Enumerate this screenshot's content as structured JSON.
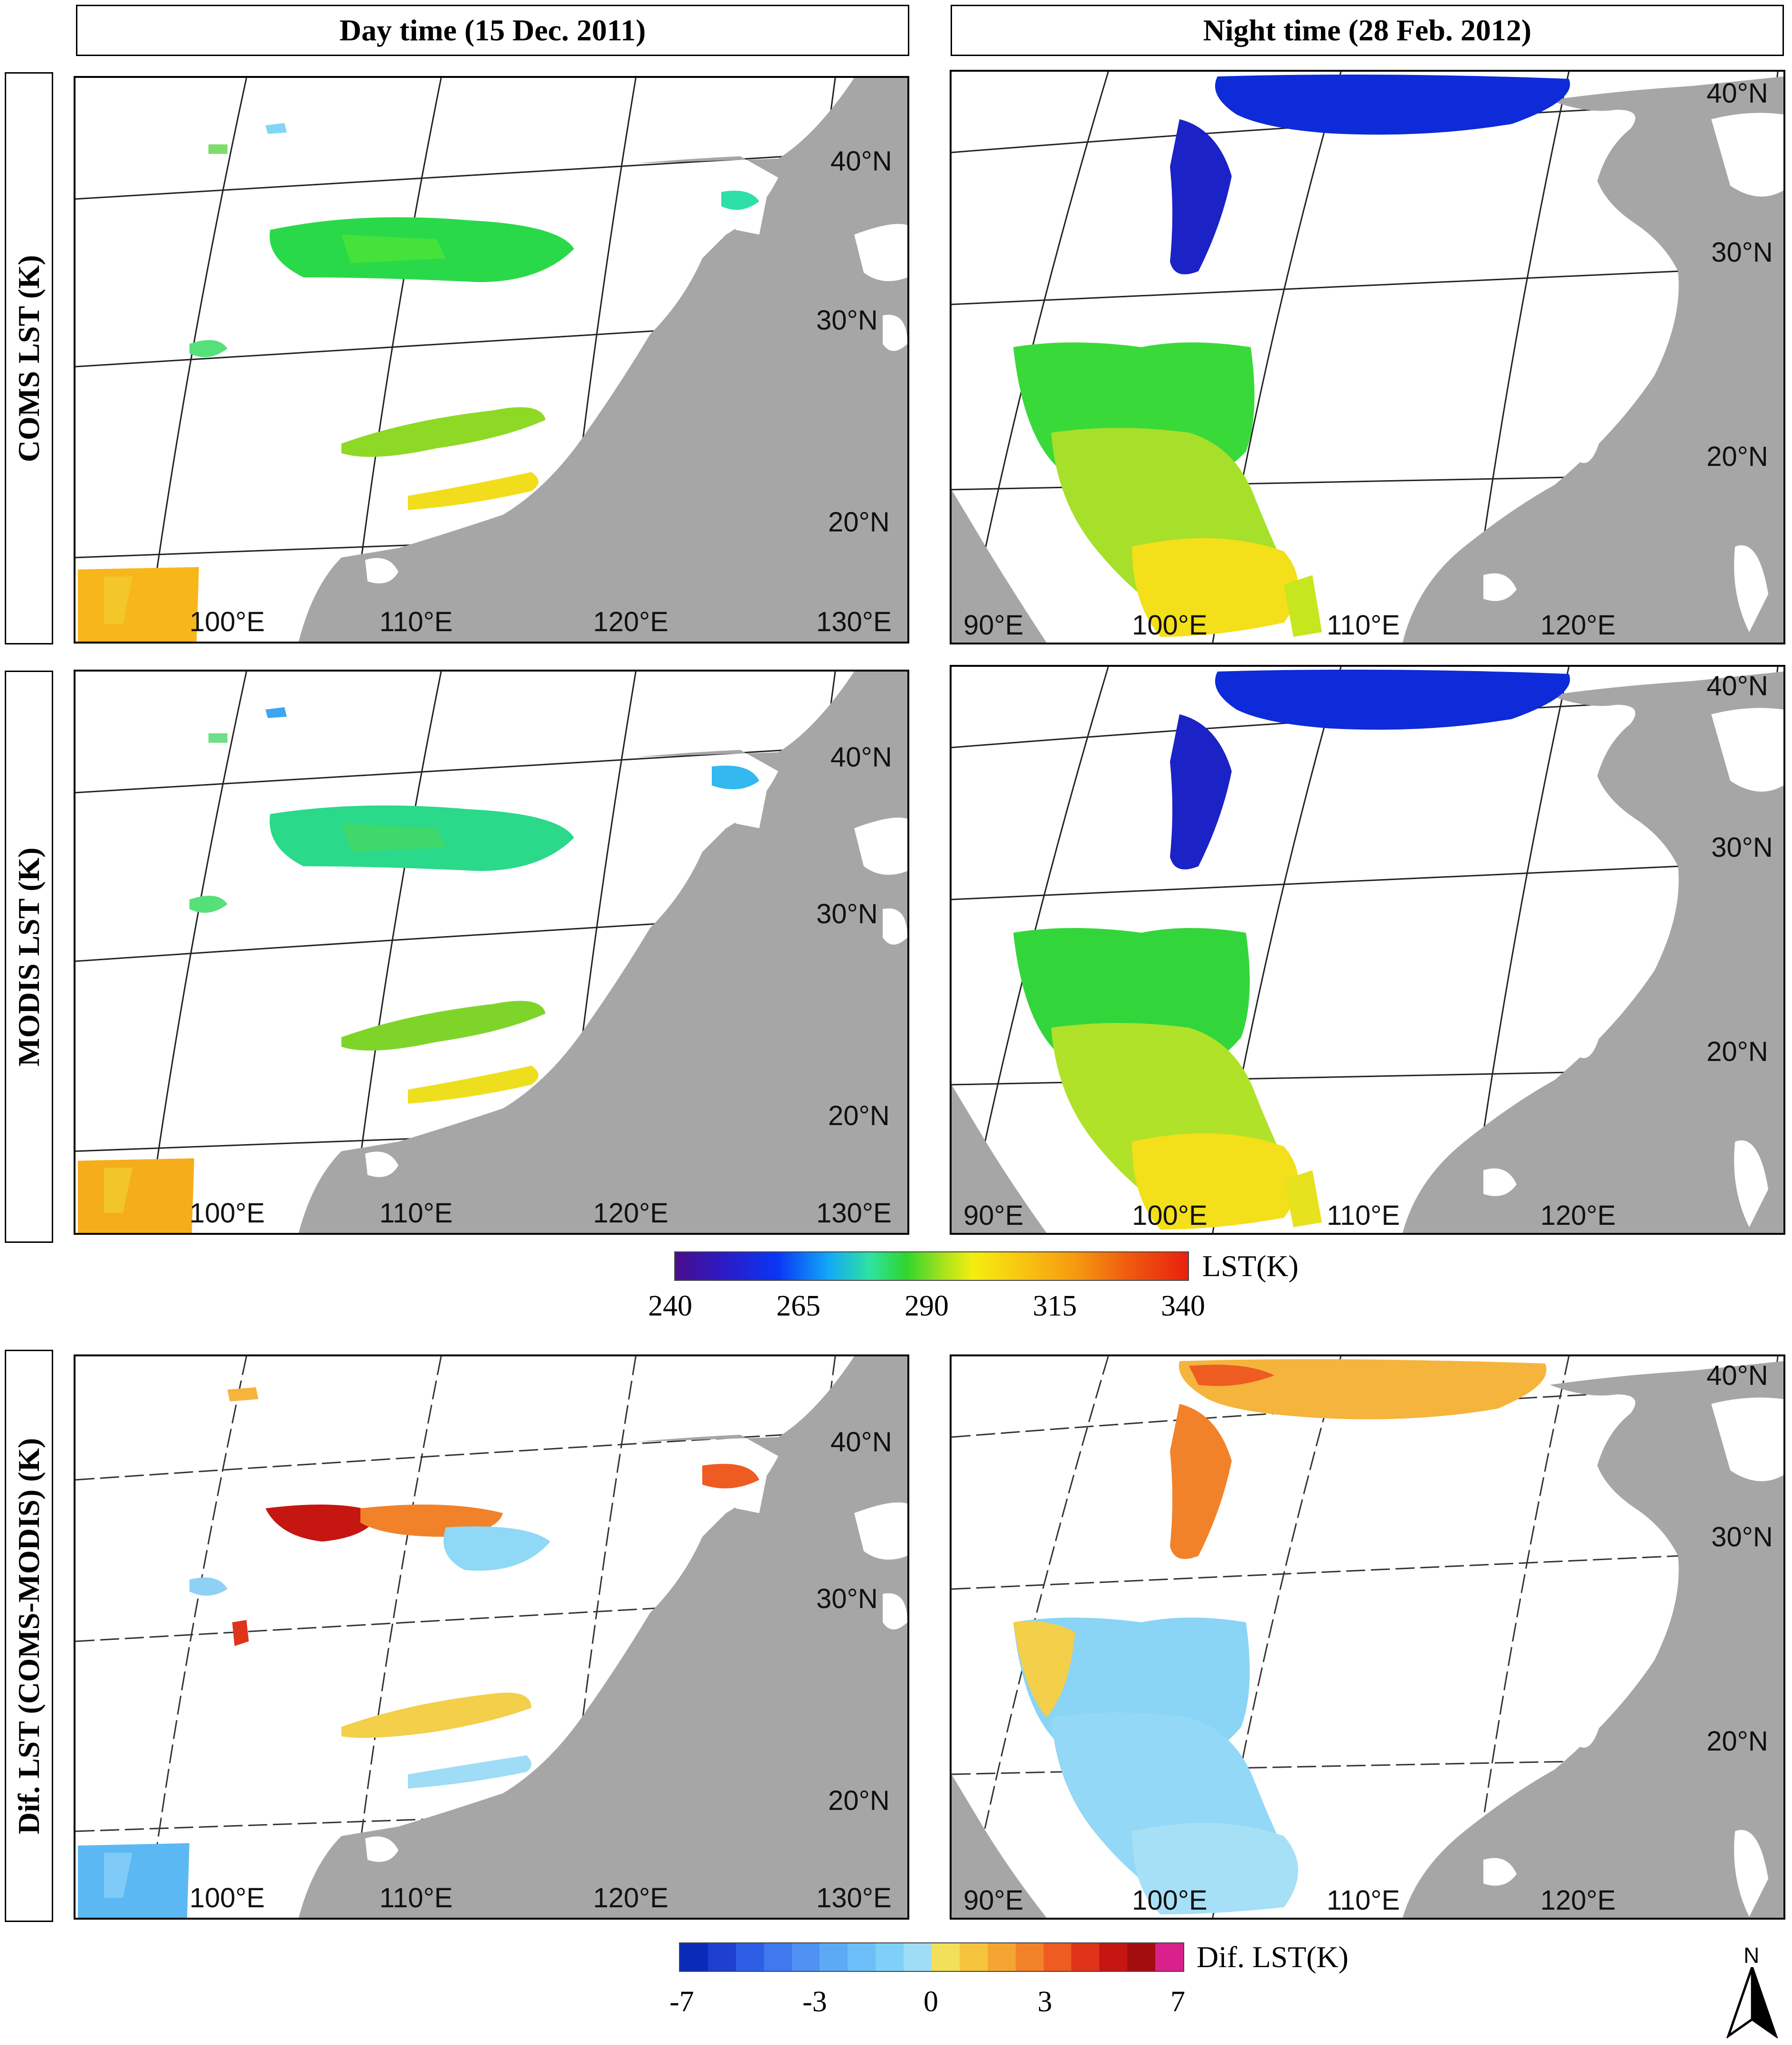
{
  "columns": [
    {
      "title": "Day time (15 Dec. 2011)"
    },
    {
      "title": "Night time (28 Feb. 2012)"
    }
  ],
  "rows": [
    {
      "title": "COMS  LST (K)"
    },
    {
      "title": "MODIS  LST (K)"
    },
    {
      "title": "Dif. LST (COMS-MODIS) (K)"
    }
  ],
  "day_labels": {
    "lat": [
      "40°N",
      "30°N",
      "20°N"
    ],
    "lon": [
      "100°E",
      "110°E",
      "120°E",
      "130°E"
    ]
  },
  "night_labels": {
    "lat": [
      "40°N",
      "30°N",
      "20°N"
    ],
    "lon": [
      "90°E",
      "100°E",
      "110°E",
      "120°E"
    ]
  },
  "lst_colorbar": {
    "title": "LST(K)",
    "ticks": [
      "240",
      "265",
      "290",
      "315",
      "340"
    ],
    "range": [
      240,
      340
    ]
  },
  "dif_colorbar": {
    "title": "Dif. LST(K)",
    "ticks": [
      "-7",
      "-3",
      "0",
      "3",
      "7"
    ],
    "range": [
      -7,
      7
    ],
    "colors": [
      "#0a2bb8",
      "#1e40d0",
      "#2f5ee6",
      "#3f78ef",
      "#4f92f3",
      "#5caaf6",
      "#6cbff8",
      "#7fd0f9",
      "#9fdcf6",
      "#f3e05a",
      "#f6c43c",
      "#f5a532",
      "#f2822a",
      "#ee5c22",
      "#e0341a",
      "#c51612",
      "#a30d10",
      "#d9218c"
    ]
  },
  "north_arrow": {
    "label": "N"
  },
  "colors": {
    "land_gray": "#a6a6a6",
    "background": "#ffffff",
    "frame": "#000000"
  }
}
